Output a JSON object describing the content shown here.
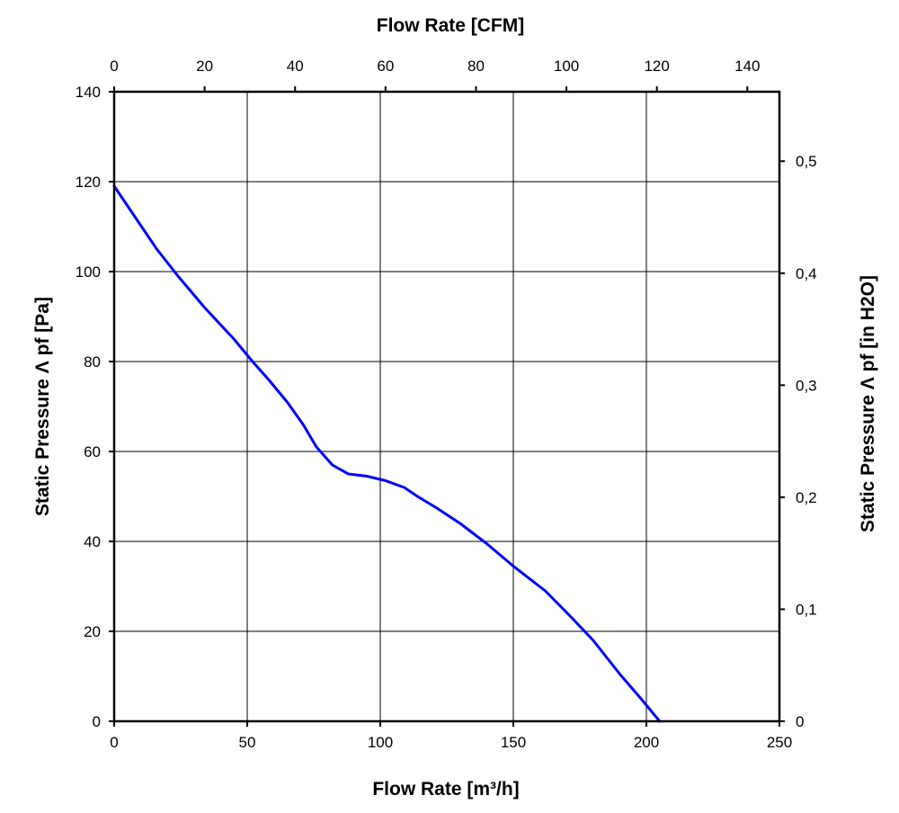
{
  "chart_data": {
    "type": "line",
    "title": "",
    "xlabel": "Flow Rate [m³/h]",
    "x2label": "Flow Rate [CFM]",
    "ylabel": "Static Pressure Λ pf [Pa]",
    "y2label": "Static Pressure Λ pf [in H2O]",
    "xlim": [
      0,
      250
    ],
    "ylim": [
      0,
      140
    ],
    "x2lim": [
      0,
      147.1
    ],
    "y2lim": [
      0,
      0.562
    ],
    "grid": true,
    "x_ticks": [
      "0",
      "50",
      "100",
      "150",
      "200",
      "250"
    ],
    "y_ticks": [
      "0",
      "20",
      "40",
      "60",
      "80",
      "100",
      "120",
      "140"
    ],
    "x2_ticks": [
      "0",
      "20",
      "40",
      "60",
      "80",
      "100",
      "120",
      "140"
    ],
    "y2_ticks": [
      "0",
      "0,1",
      "0,2",
      "0,3",
      "0,4",
      "0,5"
    ],
    "x2_tick_values": [
      0,
      20,
      40,
      60,
      80,
      100,
      120,
      140
    ],
    "y2_tick_values": [
      0,
      0.1,
      0.2,
      0.3,
      0.4,
      0.5
    ],
    "series": [
      {
        "color": "#0000ff",
        "x": [
          0,
          8,
          16,
          24,
          34,
          45,
          52,
          58,
          65,
          71,
          76,
          82,
          88,
          95,
          102,
          109,
          114,
          121,
          130,
          140,
          150,
          162,
          172,
          180,
          190,
          198,
          205
        ],
        "y": [
          119,
          112,
          105,
          99,
          92,
          85,
          80,
          76,
          71,
          66,
          61,
          57,
          55,
          54.5,
          53.5,
          52,
          50,
          47.5,
          44,
          39.5,
          34.5,
          29,
          23,
          18,
          10.5,
          5,
          0
        ]
      }
    ]
  },
  "colors": {
    "series": "#0000ff",
    "grid": "#000000",
    "background": "#ffffff"
  }
}
